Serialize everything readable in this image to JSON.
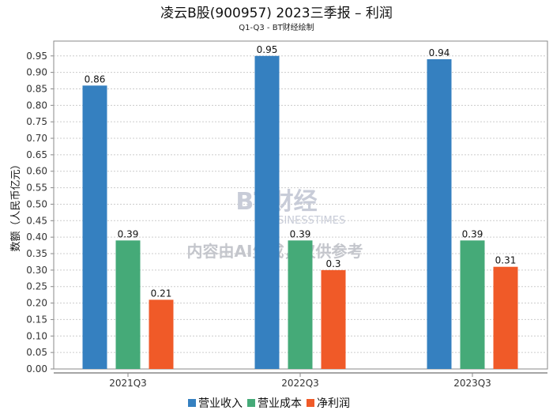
{
  "chart_data": {
    "type": "bar",
    "title": "凌云B股(900957) 2023三季报 – 利润",
    "subtitle": "Q1-Q3 - BT财经绘制",
    "xlabel": "",
    "ylabel": "数额（人民币亿元）",
    "ylim": [
      0,
      0.995
    ],
    "yticks": [
      "0.00",
      "0.05",
      "0.10",
      "0.15",
      "0.20",
      "0.25",
      "0.30",
      "0.35",
      "0.40",
      "0.45",
      "0.50",
      "0.55",
      "0.60",
      "0.65",
      "0.70",
      "0.75",
      "0.80",
      "0.85",
      "0.90",
      "0.95"
    ],
    "grid": true,
    "legend_position": "bottom-center",
    "categories": [
      "2021Q3",
      "2022Q3",
      "2023Q3"
    ],
    "series": [
      {
        "name": "营业收入",
        "color": "#3580c0",
        "values": [
          0.86,
          0.95,
          0.94
        ],
        "labels": [
          "0.86",
          "0.95",
          "0.94"
        ]
      },
      {
        "name": "营业成本",
        "color": "#45aa78",
        "values": [
          0.39,
          0.39,
          0.39
        ],
        "labels": [
          "0.39",
          "0.39",
          "0.39"
        ]
      },
      {
        "name": "净利润",
        "color": "#f05a28",
        "values": [
          0.21,
          0.3,
          0.31
        ],
        "labels": [
          "0.21",
          "0.3",
          "0.31"
        ]
      }
    ]
  },
  "watermark": {
    "brand": "BT财经",
    "brand_en": "BUSINESSTIMES",
    "notice": "内容由AI生成，仅供参考"
  }
}
